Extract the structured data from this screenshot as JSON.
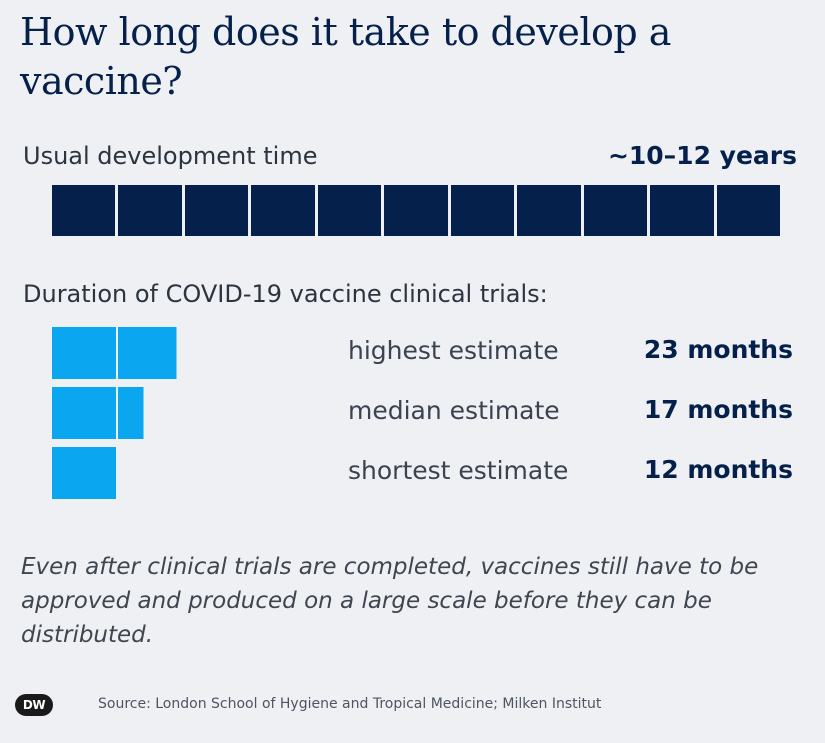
{
  "title": "How long does it take to develop a vaccine?",
  "usual": {
    "label": "Usual development time",
    "value": "~10–12 years",
    "segments": 11
  },
  "covid_heading": "Duration of COVID-19 vaccine clinical trials:",
  "colors": {
    "navy": "#05204a",
    "light_blue": "#0ba6f0",
    "background": "#eef0f3"
  },
  "chart_data": {
    "type": "bar",
    "unit": "months",
    "block_months": 12,
    "categories": [
      "highest estimate",
      "median estimate",
      "shortest estimate"
    ],
    "values": [
      23,
      17,
      12
    ],
    "value_labels": [
      "23 months",
      "17 months",
      "12 months"
    ]
  },
  "note": "Even after clinical trials are completed, vaccines still have to be approved and produced on a large scale before they can be distributed.",
  "logo": "DW",
  "source": "Source: London School of Hygiene and Tropical Medicine; Milken Institut"
}
